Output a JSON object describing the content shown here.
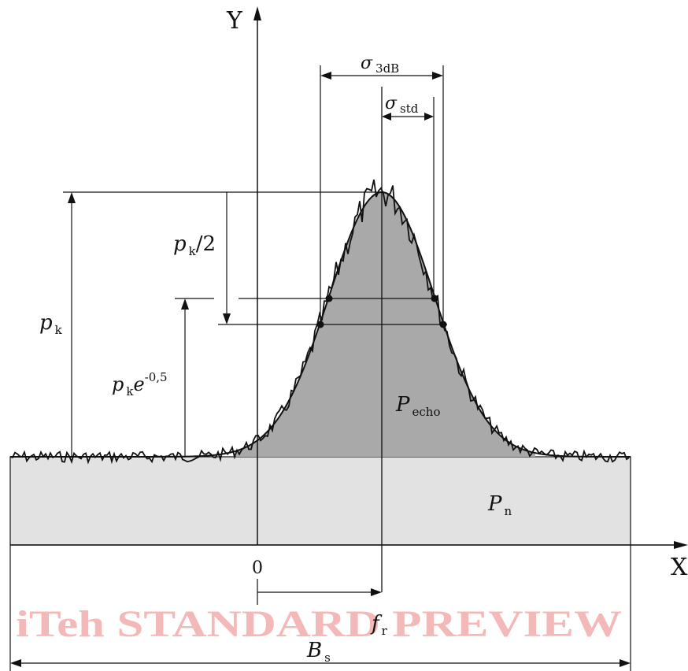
{
  "axes": {
    "x_label": "X",
    "y_label": "Y",
    "origin_label": "0"
  },
  "labels": {
    "sigma_3db": {
      "sym": "σ",
      "sub": "3dB"
    },
    "sigma_std": {
      "sym": "σ",
      "sub": "std"
    },
    "pk_half": {
      "sym": "p",
      "sub": "k",
      "tail": "/2"
    },
    "pk": {
      "sym": "p",
      "sub": "k"
    },
    "pk_e": {
      "sym": "p",
      "sub": "k",
      "base": "e",
      "exp": "-0,5"
    },
    "p_echo": {
      "sym": "P",
      "sub": "echo"
    },
    "p_n": {
      "sym": "P",
      "sub": "n"
    },
    "f_r": {
      "sym": "f",
      "sub": "r"
    },
    "b_s": {
      "sym": "B",
      "sub": "s"
    }
  },
  "watermark": "iTeh STANDARD PREVIEW",
  "colors": {
    "line": "#111111",
    "echo_fill": "#a9a9a9",
    "noise_fill": "#e2e2e2",
    "watermark": "#f3b8b8"
  }
}
